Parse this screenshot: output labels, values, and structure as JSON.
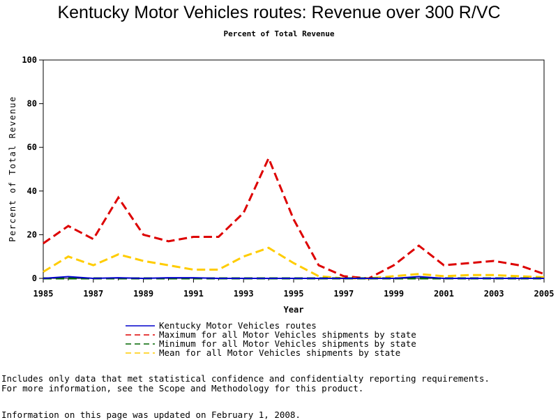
{
  "chart_data": {
    "type": "line",
    "title": "Kentucky Motor Vehicles routes: Revenue over 300 R/VC",
    "subtitle": "Percent of Total Revenue",
    "xlabel": "Year",
    "ylabel": "Percent of Total Revenue",
    "xlim": [
      1985,
      2005
    ],
    "ylim": [
      0,
      100
    ],
    "x_ticks": [
      "1985",
      "1987",
      "1989",
      "1991",
      "1993",
      "1995",
      "1997",
      "1999",
      "2001",
      "2003",
      "2005"
    ],
    "y_ticks": [
      "0",
      "20",
      "40",
      "60",
      "80",
      "100"
    ],
    "x": [
      1985,
      1986,
      1987,
      1988,
      1989,
      1990,
      1991,
      1992,
      1993,
      1994,
      1995,
      1996,
      1997,
      1998,
      1999,
      2000,
      2001,
      2002,
      2003,
      2004,
      2005
    ],
    "series": [
      {
        "name": "Kentucky Motor Vehicles routes",
        "color": "#0000cc",
        "dash": "solid",
        "values": [
          0,
          0.8,
          0,
          0.3,
          0,
          0.3,
          0.3,
          0,
          0,
          0,
          0,
          0,
          0,
          0,
          0,
          0.8,
          0,
          0,
          0,
          0,
          0
        ]
      },
      {
        "name": "Maximum for all Motor Vehicles shipments by state",
        "color": "#dd0000",
        "dash": "dashed",
        "values": [
          16,
          24,
          18,
          37,
          20,
          17,
          19,
          19,
          30,
          55,
          27,
          6,
          1,
          0,
          6,
          15,
          6,
          7,
          8,
          6,
          2
        ]
      },
      {
        "name": "Minimum for all Motor Vehicles shipments by state",
        "color": "#006600",
        "dash": "dashed",
        "values": [
          0,
          0,
          0,
          0,
          0,
          0,
          0,
          0,
          0,
          0,
          0,
          0,
          0,
          0,
          0,
          0,
          0,
          0,
          0,
          0,
          0
        ]
      },
      {
        "name": "Mean for all Motor Vehicles shipments by state",
        "color": "#ffcc00",
        "dash": "dashed",
        "values": [
          3,
          10,
          6,
          11,
          8,
          6,
          4,
          4,
          10,
          14,
          7,
          1,
          0,
          0,
          1,
          2,
          1,
          1.5,
          1.5,
          1,
          0.5
        ]
      }
    ],
    "legend_position": "bottom",
    "grid": false
  },
  "notes": {
    "line1": "Includes only data that met statistical confidence and confidentialty reporting requirements.",
    "line2": "For more information, see the Scope and Methodology for this product.",
    "updated": "Information on this page was updated on February 1, 2008."
  }
}
